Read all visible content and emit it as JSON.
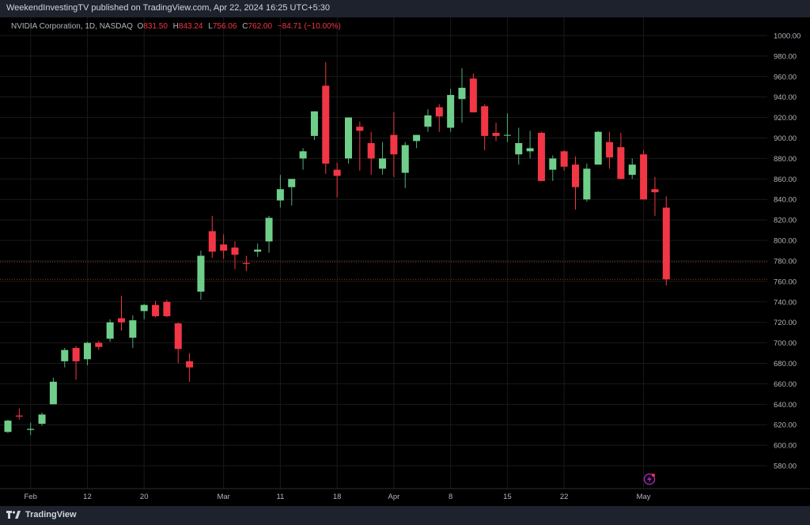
{
  "header": {
    "publish_line": "WeekendInvestingTV published on TradingView.com, Apr 22, 2024 16:25 UTC+5:30"
  },
  "legend": {
    "symbol": "NVIDIA Corporation, 1D, NASDAQ",
    "o_label": "O",
    "o_value": "831.50",
    "h_label": "H",
    "h_value": "843.24",
    "l_label": "L",
    "l_value": "756.06",
    "c_label": "C",
    "c_value": "762.00",
    "change": "−84.71 (−10.00%)"
  },
  "footer": {
    "brand": "TradingView"
  },
  "colors": {
    "up": "#4caf7a",
    "down": "#f23645",
    "upBody": "#6fcf8a",
    "bg": "#000000",
    "grid": "#1a1a1a",
    "axisText": "#b2b5be"
  },
  "chart_data": {
    "type": "candlestick",
    "ylim": [
      570,
      1010
    ],
    "yticks": [
      580,
      600,
      620,
      640,
      660,
      680,
      700,
      720,
      740,
      760,
      780,
      800,
      820,
      840,
      860,
      880,
      900,
      920,
      940,
      960,
      980,
      1000
    ],
    "ytick_labels": [
      "580.00",
      "600.00",
      "620.00",
      "640.00",
      "660.00",
      "680.00",
      "700.00",
      "720.00",
      "740.00",
      "760.00",
      "780.00",
      "800.00",
      "820.00",
      "840.00",
      "860.00",
      "880.00",
      "900.00",
      "920.00",
      "940.00",
      "960.00",
      "980.00",
      "1000.00"
    ],
    "xticks": [
      {
        "label": "Feb",
        "index": 2
      },
      {
        "label": "12",
        "index": 7
      },
      {
        "label": "20",
        "index": 12
      },
      {
        "label": "Mar",
        "index": 19
      },
      {
        "label": "11",
        "index": 24
      },
      {
        "label": "18",
        "index": 29
      },
      {
        "label": "Apr",
        "index": 34
      },
      {
        "label": "8",
        "index": 39
      },
      {
        "label": "15",
        "index": 44
      },
      {
        "label": "22",
        "index": 49
      },
      {
        "label": "May",
        "index": 56
      }
    ],
    "price_lines": [
      779,
      762
    ],
    "candles": [
      {
        "o": 613,
        "h": 625,
        "l": 612,
        "c": 624
      },
      {
        "o": 629,
        "h": 636,
        "l": 625,
        "c": 628
      },
      {
        "o": 615,
        "h": 622,
        "l": 610,
        "c": 616
      },
      {
        "o": 621,
        "h": 632,
        "l": 619,
        "c": 630
      },
      {
        "o": 640,
        "h": 666,
        "l": 640,
        "c": 662
      },
      {
        "o": 682,
        "h": 695,
        "l": 676,
        "c": 693
      },
      {
        "o": 695,
        "h": 697,
        "l": 664,
        "c": 682
      },
      {
        "o": 684,
        "h": 701,
        "l": 678,
        "c": 700
      },
      {
        "o": 700,
        "h": 702,
        "l": 693,
        "c": 696
      },
      {
        "o": 704,
        "h": 723,
        "l": 701,
        "c": 720
      },
      {
        "o": 724,
        "h": 746,
        "l": 712,
        "c": 720
      },
      {
        "o": 705,
        "h": 727,
        "l": 695,
        "c": 722
      },
      {
        "o": 731,
        "h": 738,
        "l": 723,
        "c": 737
      },
      {
        "o": 737,
        "h": 741,
        "l": 725,
        "c": 726
      },
      {
        "o": 740,
        "h": 742,
        "l": 725,
        "c": 726
      },
      {
        "o": 719,
        "h": 720,
        "l": 680,
        "c": 694
      },
      {
        "o": 682,
        "h": 690,
        "l": 662,
        "c": 676
      },
      {
        "o": 750,
        "h": 790,
        "l": 742,
        "c": 785
      },
      {
        "o": 809,
        "h": 824,
        "l": 783,
        "c": 789
      },
      {
        "o": 796,
        "h": 806,
        "l": 782,
        "c": 790
      },
      {
        "o": 793,
        "h": 799,
        "l": 772,
        "c": 786
      },
      {
        "o": 778,
        "h": 785,
        "l": 770,
        "c": 777
      },
      {
        "o": 789,
        "h": 797,
        "l": 784,
        "c": 791
      },
      {
        "o": 799,
        "h": 824,
        "l": 788,
        "c": 822
      },
      {
        "o": 839,
        "h": 864,
        "l": 832,
        "c": 850
      },
      {
        "o": 852,
        "h": 860,
        "l": 834,
        "c": 860
      },
      {
        "o": 880,
        "h": 890,
        "l": 869,
        "c": 887
      },
      {
        "o": 902,
        "h": 926,
        "l": 898,
        "c": 926
      },
      {
        "o": 951,
        "h": 974,
        "l": 865,
        "c": 875
      },
      {
        "o": 869,
        "h": 876,
        "l": 842,
        "c": 863
      },
      {
        "o": 880,
        "h": 920,
        "l": 875,
        "c": 920
      },
      {
        "o": 911,
        "h": 916,
        "l": 868,
        "c": 907
      },
      {
        "o": 895,
        "h": 906,
        "l": 864,
        "c": 880
      },
      {
        "o": 870,
        "h": 896,
        "l": 864,
        "c": 880
      },
      {
        "o": 903,
        "h": 925,
        "l": 862,
        "c": 884
      },
      {
        "o": 866,
        "h": 896,
        "l": 851,
        "c": 893
      },
      {
        "o": 897,
        "h": 903,
        "l": 890,
        "c": 903
      },
      {
        "o": 911,
        "h": 928,
        "l": 906,
        "c": 922
      },
      {
        "o": 930,
        "h": 933,
        "l": 906,
        "c": 921
      },
      {
        "o": 910,
        "h": 948,
        "l": 906,
        "c": 942
      },
      {
        "o": 938,
        "h": 968,
        "l": 915,
        "c": 949
      },
      {
        "o": 958,
        "h": 963,
        "l": 925,
        "c": 925
      },
      {
        "o": 931,
        "h": 933,
        "l": 888,
        "c": 902
      },
      {
        "o": 905,
        "h": 915,
        "l": 897,
        "c": 902
      },
      {
        "o": 903,
        "h": 924,
        "l": 896,
        "c": 903
      },
      {
        "o": 884,
        "h": 910,
        "l": 874,
        "c": 895
      },
      {
        "o": 887,
        "h": 907,
        "l": 880,
        "c": 890
      },
      {
        "o": 905,
        "h": 906,
        "l": 858,
        "c": 858
      },
      {
        "o": 869,
        "h": 883,
        "l": 858,
        "c": 880
      },
      {
        "o": 887,
        "h": 888,
        "l": 868,
        "c": 872
      },
      {
        "o": 874,
        "h": 882,
        "l": 830,
        "c": 852
      },
      {
        "o": 840,
        "h": 875,
        "l": 838,
        "c": 870
      },
      {
        "o": 874,
        "h": 907,
        "l": 874,
        "c": 906
      },
      {
        "o": 896,
        "h": 906,
        "l": 870,
        "c": 881
      },
      {
        "o": 891,
        "h": 905,
        "l": 860,
        "c": 860
      },
      {
        "o": 864,
        "h": 880,
        "l": 860,
        "c": 874
      },
      {
        "o": 884,
        "h": 888,
        "l": 840,
        "c": 840
      },
      {
        "o": 850,
        "h": 862,
        "l": 824,
        "c": 847
      },
      {
        "o": 832,
        "h": 843,
        "l": 756,
        "c": 762
      }
    ]
  }
}
